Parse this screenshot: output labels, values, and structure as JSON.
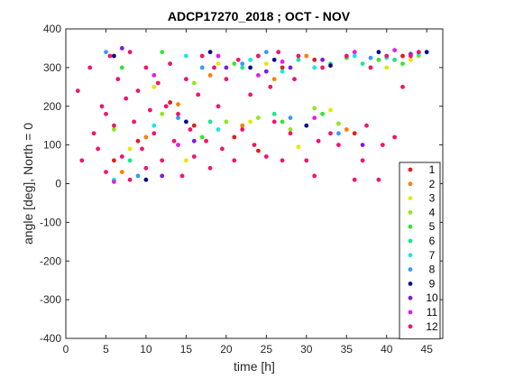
{
  "chart_data": {
    "type": "scatter",
    "title": "ADCP17270_2018 ; OCT - NOV",
    "xlabel": "time [h]",
    "ylabel": "angle [deg], North = 0",
    "xlim": [
      0,
      47
    ],
    "ylim": [
      -400,
      400
    ],
    "xticks": [
      0,
      5,
      10,
      15,
      20,
      25,
      30,
      35,
      40,
      45
    ],
    "yticks": [
      -400,
      -300,
      -200,
      -100,
      0,
      100,
      200,
      300,
      400
    ],
    "grid": false,
    "legend_position": "bottom-right",
    "series": [
      {
        "name": "1",
        "color": "#e41a1c",
        "points": [
          [
            6,
            60
          ],
          [
            9,
            110
          ],
          [
            13,
            210
          ],
          [
            16,
            150
          ],
          [
            21,
            120
          ],
          [
            24,
            85
          ],
          [
            27,
            300
          ],
          [
            31,
            320
          ],
          [
            36,
            130
          ],
          [
            42,
            330
          ]
        ]
      },
      {
        "name": "2",
        "color": "#ff7f00",
        "points": [
          [
            7,
            30
          ],
          [
            10,
            120
          ],
          [
            14,
            205
          ],
          [
            18,
            280
          ],
          [
            22,
            150
          ],
          [
            26,
            270
          ],
          [
            30,
            330
          ],
          [
            35,
            140
          ],
          [
            41,
            320
          ]
        ]
      },
      {
        "name": "3",
        "color": "#e6e600",
        "points": [
          [
            8,
            90
          ],
          [
            11,
            250
          ],
          [
            15,
            60
          ],
          [
            19,
            310
          ],
          [
            23,
            160
          ],
          [
            25,
            310
          ],
          [
            29,
            95
          ],
          [
            33,
            190
          ],
          [
            40,
            300
          ],
          [
            43,
            320
          ]
        ]
      },
      {
        "name": "4",
        "color": "#8fe61a",
        "points": [
          [
            6,
            140
          ],
          [
            12,
            180
          ],
          [
            16,
            260
          ],
          [
            20,
            160
          ],
          [
            24,
            170
          ],
          [
            28,
            140
          ],
          [
            31,
            195
          ],
          [
            34,
            155
          ],
          [
            38,
            300
          ],
          [
            44,
            330
          ]
        ]
      },
      {
        "name": "5",
        "color": "#33e633",
        "points": [
          [
            7,
            300
          ],
          [
            12,
            340
          ],
          [
            17,
            120
          ],
          [
            21,
            310
          ],
          [
            24,
            330
          ],
          [
            27,
            160
          ],
          [
            32,
            180
          ],
          [
            35,
            325
          ],
          [
            39,
            320
          ],
          [
            42,
            310
          ]
        ]
      },
      {
        "name": "6",
        "color": "#1ae68f",
        "points": [
          [
            8,
            60
          ],
          [
            13,
            310
          ],
          [
            18,
            160
          ],
          [
            22,
            300
          ],
          [
            26,
            180
          ],
          [
            29,
            320
          ],
          [
            33,
            310
          ],
          [
            37,
            310
          ],
          [
            41,
            320
          ]
        ]
      },
      {
        "name": "7",
        "color": "#1ae6e6",
        "points": [
          [
            6,
            10
          ],
          [
            11,
            150
          ],
          [
            15,
            330
          ],
          [
            19,
            140
          ],
          [
            23,
            320
          ],
          [
            27,
            290
          ],
          [
            31,
            300
          ],
          [
            36,
            330
          ],
          [
            40,
            325
          ],
          [
            44,
            335
          ]
        ]
      },
      {
        "name": "8",
        "color": "#3399ff",
        "points": [
          [
            5,
            340
          ],
          [
            9,
            20
          ],
          [
            14,
            170
          ],
          [
            17,
            300
          ],
          [
            22,
            310
          ],
          [
            25,
            340
          ],
          [
            28,
            170
          ],
          [
            34,
            130
          ],
          [
            38,
            325
          ]
        ]
      },
      {
        "name": "9",
        "color": "#0a0a8c",
        "points": [
          [
            6,
            330
          ],
          [
            10,
            10
          ],
          [
            15,
            160
          ],
          [
            18,
            340
          ],
          [
            23,
            300
          ],
          [
            26,
            320
          ],
          [
            30,
            150
          ],
          [
            33,
            305
          ],
          [
            39,
            340
          ],
          [
            45,
            340
          ]
        ]
      },
      {
        "name": "10",
        "color": "#7a1ae6",
        "points": [
          [
            7,
            350
          ],
          [
            12,
            20
          ],
          [
            16,
            110
          ],
          [
            20,
            300
          ],
          [
            25,
            290
          ],
          [
            28,
            300
          ],
          [
            32,
            320
          ],
          [
            37,
            100
          ],
          [
            43,
            335
          ]
        ]
      },
      {
        "name": "11",
        "color": "#e61ae6",
        "points": [
          [
            6,
            5
          ],
          [
            11,
            280
          ],
          [
            14,
            100
          ],
          [
            19,
            330
          ],
          [
            24,
            280
          ],
          [
            27,
            315
          ],
          [
            31,
            170
          ],
          [
            36,
            340
          ],
          [
            41,
            345
          ]
        ]
      },
      {
        "name": "12",
        "color": "#f0146e",
        "points": [
          [
            1.5,
            240
          ],
          [
            2,
            60
          ],
          [
            3,
            300
          ],
          [
            3.5,
            130
          ],
          [
            4,
            90
          ],
          [
            4.5,
            200
          ],
          [
            5,
            30
          ],
          [
            5,
            180
          ],
          [
            5.5,
            330
          ],
          [
            6,
            150
          ],
          [
            6.5,
            270
          ],
          [
            7,
            70
          ],
          [
            7.5,
            220
          ],
          [
            8,
            10
          ],
          [
            8,
            340
          ],
          [
            8.5,
            160
          ],
          [
            9,
            240
          ],
          [
            9.5,
            90
          ],
          [
            10,
            300
          ],
          [
            10,
            40
          ],
          [
            10.5,
            190
          ],
          [
            11,
            130
          ],
          [
            11.5,
            260
          ],
          [
            12,
            60
          ],
          [
            12.5,
            200
          ],
          [
            13,
            310
          ],
          [
            13.5,
            110
          ],
          [
            14,
            180
          ],
          [
            14.5,
            20
          ],
          [
            15,
            270
          ],
          [
            15.5,
            140
          ],
          [
            16,
            70
          ],
          [
            16.5,
            230
          ],
          [
            17,
            330
          ],
          [
            17.5,
            110
          ],
          [
            18,
            40
          ],
          [
            18.5,
            300
          ],
          [
            19,
            200
          ],
          [
            19.5,
            90
          ],
          [
            20,
            270
          ],
          [
            21,
            60
          ],
          [
            21.5,
            320
          ],
          [
            22,
            140
          ],
          [
            23,
            230
          ],
          [
            23.5,
            100
          ],
          [
            24,
            330
          ],
          [
            25,
            70
          ],
          [
            25.5,
            250
          ],
          [
            26,
            160
          ],
          [
            26.5,
            340
          ],
          [
            27,
            60
          ],
          [
            28,
            130
          ],
          [
            28.5,
            270
          ],
          [
            29,
            330
          ],
          [
            30,
            60
          ],
          [
            31,
            20
          ],
          [
            31.5,
            110
          ],
          [
            32,
            300
          ],
          [
            33,
            130
          ],
          [
            34,
            100
          ],
          [
            35,
            330
          ],
          [
            36,
            10
          ],
          [
            37,
            60
          ],
          [
            37.5,
            150
          ],
          [
            38,
            300
          ],
          [
            39,
            10
          ],
          [
            39.5,
            100
          ],
          [
            40,
            330
          ],
          [
            41,
            120
          ],
          [
            42,
            250
          ],
          [
            43,
            330
          ],
          [
            44,
            340
          ]
        ]
      }
    ]
  }
}
